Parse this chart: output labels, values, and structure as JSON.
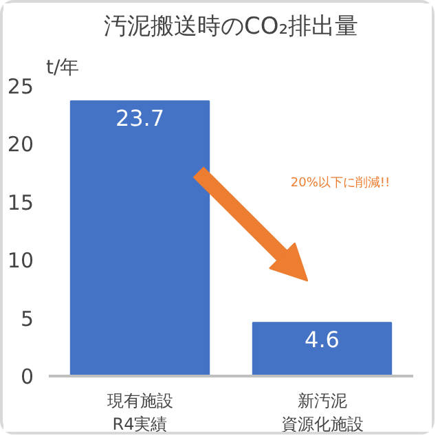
{
  "chart_data": {
    "type": "bar",
    "title": "汚泥搬送時のCO₂排出量",
    "ylabel": "t/年",
    "categories": [
      "現有施設\nR4実績",
      "新汚泥資源化施設"
    ],
    "values": [
      23.7,
      4.6
    ],
    "color": "#4472c4",
    "ylim": [
      0,
      25
    ],
    "yticks": [
      0,
      5,
      10,
      15,
      20,
      25
    ],
    "grid": false,
    "data_labels": true,
    "annotations": [
      "20%以下に削減!!"
    ]
  }
}
